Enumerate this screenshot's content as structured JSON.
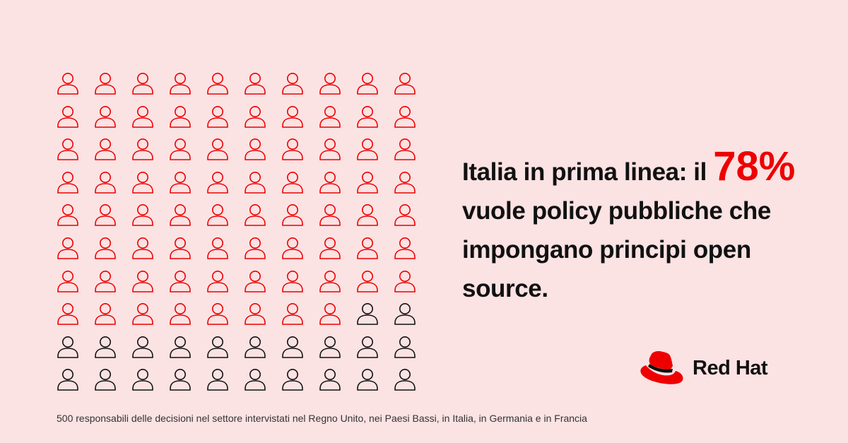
{
  "infographic": {
    "total_icons": 100,
    "highlighted_icons": 78,
    "colors": {
      "background": "#fbe2e3",
      "highlight": "#ee0000",
      "base": "#111111"
    },
    "icon_name": "person-icon"
  },
  "headline": {
    "before": "Italia in prima linea: il ",
    "highlight": "78%",
    "after": " vuole policy pubbliche che impongano principi open source."
  },
  "logo": {
    "text": "Red Hat",
    "icon_name": "red-hat-icon"
  },
  "footnote": "500 responsabili delle decisioni nel settore intervistati nel Regno Unito, nei Paesi Bassi, in Italia, in Germania e in Francia"
}
